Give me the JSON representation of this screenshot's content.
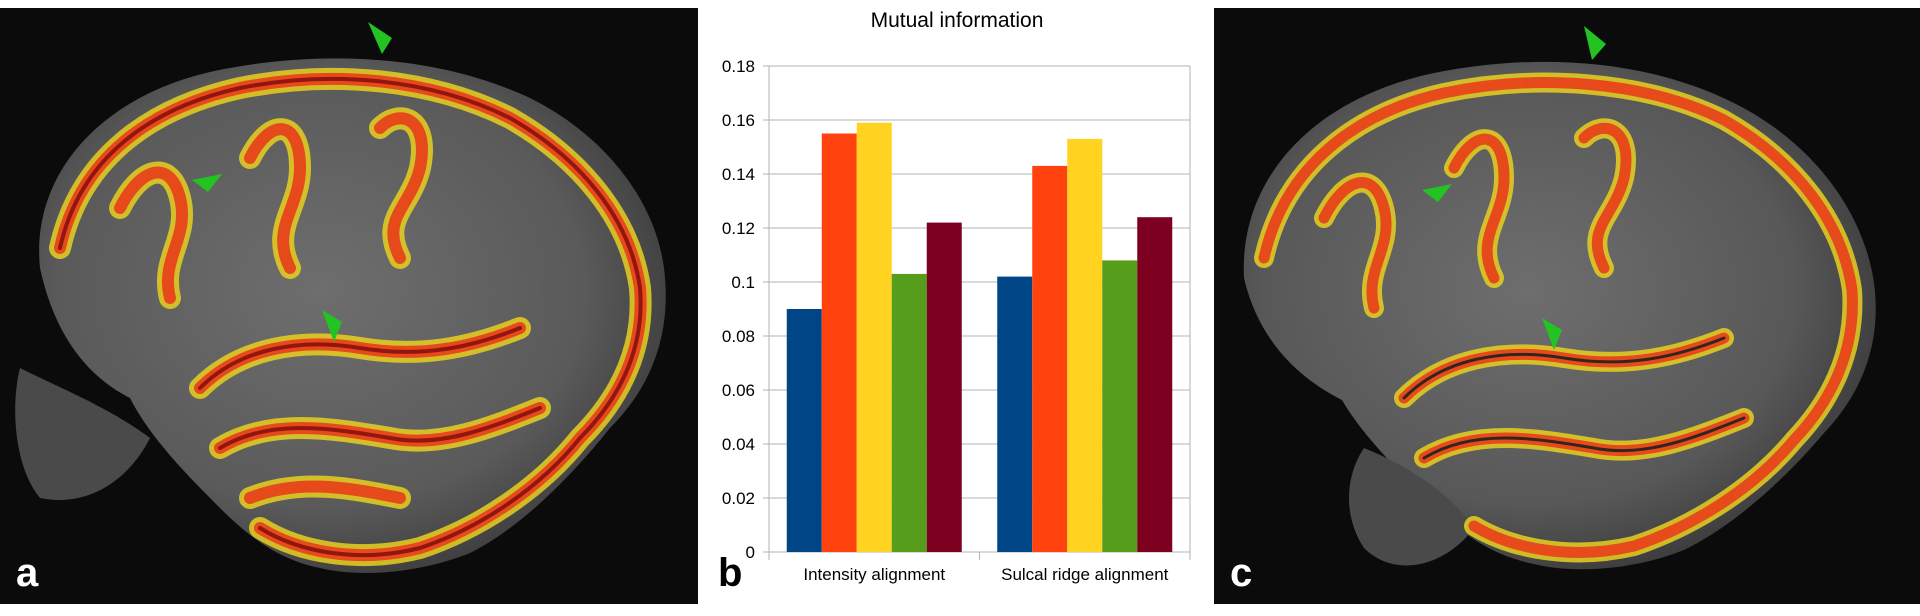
{
  "panels": {
    "a": {
      "letter": "a",
      "image": "sagittal-brain-mri-with-cortical-overlay"
    },
    "b": {
      "letter": "b"
    },
    "c": {
      "letter": "c",
      "image": "sagittal-brain-mri-with-cortical-overlay"
    }
  },
  "colors": {
    "series": [
      "#004586",
      "#ff420e",
      "#ffd320",
      "#579d1c",
      "#7e0021"
    ],
    "arrow": "#22c322",
    "grid": "#b3b3b3"
  },
  "chart_data": {
    "type": "bar",
    "title": "Mutual information",
    "categories": [
      "Intensity alignment",
      "Sulcal ridge alignment"
    ],
    "series": [
      {
        "name": "series-1",
        "values": [
          0.09,
          0.102
        ]
      },
      {
        "name": "series-2",
        "values": [
          0.155,
          0.143
        ]
      },
      {
        "name": "series-3",
        "values": [
          0.159,
          0.153
        ]
      },
      {
        "name": "series-4",
        "values": [
          0.103,
          0.108
        ]
      },
      {
        "name": "series-5",
        "values": [
          0.122,
          0.124
        ]
      }
    ],
    "ylim": [
      0,
      0.18
    ],
    "yticks": [
      "0",
      "0.02",
      "0.04",
      "0.06",
      "0.08",
      "0.1",
      "0.12",
      "0.14",
      "0.16",
      "0.18"
    ],
    "grid": true,
    "legend": "none"
  }
}
